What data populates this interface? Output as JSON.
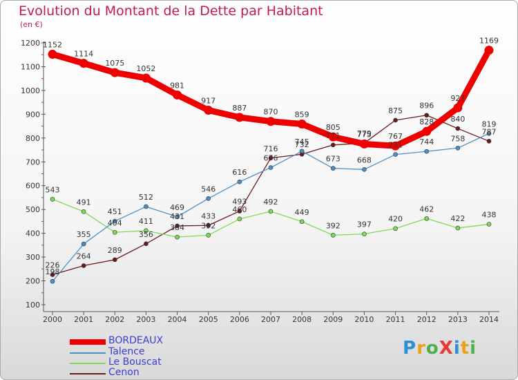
{
  "header": {
    "title": "Evolution du Montant de la Dette par Habitant",
    "subtitle": "(en €)"
  },
  "logo": {
    "text": "ProXiti",
    "colors": [
      "#2b8fd6",
      "#e8a21a",
      "#4caf50",
      "#e53935",
      "#2b8fd6",
      "#e8a21a",
      "#4caf50"
    ]
  },
  "chart_data": {
    "type": "line",
    "x": [
      2000,
      2001,
      2002,
      2003,
      2004,
      2005,
      2006,
      2007,
      2008,
      2009,
      2010,
      2011,
      2012,
      2013,
      2014
    ],
    "ylim": [
      100,
      1200
    ],
    "yticks": [
      100,
      200,
      300,
      400,
      500,
      600,
      700,
      800,
      900,
      1000,
      1100,
      1200
    ],
    "grid": false,
    "legend": "bottom-left",
    "series": [
      {
        "name": "BORDEAUX",
        "color": "#ee0000",
        "values": [
          1152,
          1114,
          1075,
          1052,
          981,
          917,
          887,
          870,
          859,
          805,
          775,
          767,
          828,
          927,
          1169
        ]
      },
      {
        "name": "Talence",
        "color": "#4a90c8",
        "values": [
          198,
          355,
          451,
          512,
          469,
          546,
          616,
          676,
          745,
          673,
          668,
          731,
          744,
          758,
          819
        ]
      },
      {
        "name": "Le Bouscat",
        "color": "#7ed957",
        "values": [
          543,
          491,
          404,
          411,
          384,
          392,
          460,
          492,
          449,
          392,
          397,
          420,
          462,
          422,
          438
        ]
      },
      {
        "name": "Cenon",
        "color": "#6b1a1a",
        "values": [
          226,
          264,
          289,
          356,
          431,
          433,
          493,
          716,
          732,
          771,
          779,
          875,
          896,
          840,
          787
        ]
      }
    ]
  }
}
